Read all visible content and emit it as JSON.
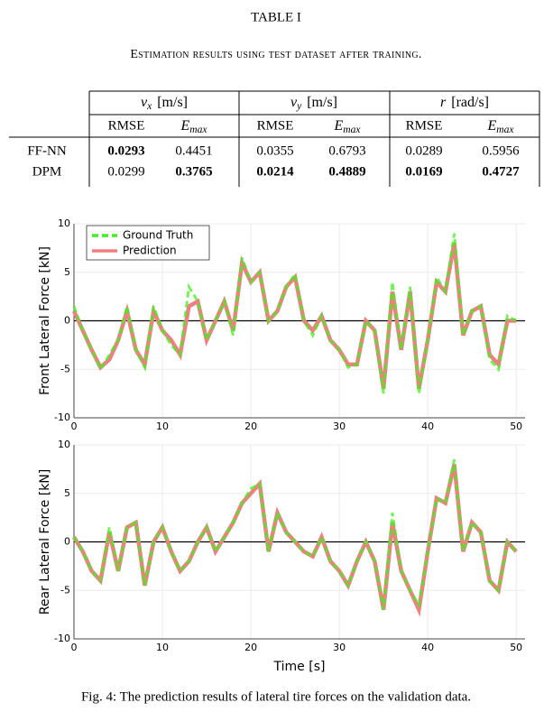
{
  "table": {
    "title": "TABLE I",
    "caption": "Estimation results using test dataset after training.",
    "groups": [
      {
        "symbol": "v",
        "sub": "x",
        "unit": "[m/s]"
      },
      {
        "symbol": "v",
        "sub": "y",
        "unit": "[m/s]"
      },
      {
        "symbol": "r",
        "sub": "",
        "unit": "[rad/s]"
      }
    ],
    "subheaders": [
      {
        "text": "RMSE"
      },
      {
        "symbol": "E",
        "sub": "max"
      },
      {
        "text": "RMSE"
      },
      {
        "symbol": "E",
        "sub": "max"
      },
      {
        "text": "RMSE"
      },
      {
        "symbol": "E",
        "sub": "max"
      }
    ],
    "rows": [
      {
        "label": "FF-NN",
        "cells": [
          0.0293,
          0.4451,
          0.0355,
          0.6793,
          0.0289,
          0.5956
        ],
        "bold": [
          true,
          false,
          false,
          false,
          false,
          false
        ]
      },
      {
        "label": "DPM",
        "cells": [
          0.0299,
          0.3765,
          0.0214,
          0.4889,
          0.0169,
          0.4727
        ],
        "bold": [
          false,
          true,
          true,
          true,
          true,
          true
        ]
      }
    ]
  },
  "chart_data": [
    {
      "type": "line",
      "ylabel": "Front Lateral Force [kN]",
      "x": [
        0,
        1,
        2,
        3,
        4,
        5,
        6,
        7,
        8,
        9,
        10,
        11,
        12,
        13,
        14,
        15,
        16,
        17,
        18,
        19,
        20,
        21,
        22,
        23,
        24,
        25,
        26,
        27,
        28,
        29,
        30,
        31,
        32,
        33,
        34,
        35,
        36,
        37,
        38,
        39,
        40,
        41,
        42,
        43,
        44,
        45,
        46,
        47,
        48,
        49,
        50
      ],
      "series": [
        {
          "name": "Ground Truth",
          "color": "#44ee22",
          "style": "dashed",
          "values": [
            1.5,
            -1,
            -3,
            -5,
            -3.5,
            -2,
            1.5,
            -3,
            -4.8,
            1.5,
            -1,
            -2.5,
            -3.5,
            3.5,
            2,
            -2,
            0,
            2,
            -1.5,
            6.5,
            4,
            5,
            0,
            1,
            3.5,
            4.8,
            0,
            -1.5,
            0.5,
            -2,
            -3,
            -4.8,
            -4.5,
            0,
            -1,
            -7.5,
            4,
            -3,
            3.5,
            -7.5,
            -2,
            4.5,
            3,
            9,
            -1.5,
            1,
            1.5,
            -4,
            -5,
            0.5,
            0
          ]
        },
        {
          "name": "Prediction",
          "color": "#f08080",
          "style": "solid",
          "values": [
            1,
            -1,
            -3,
            -4.8,
            -4,
            -2,
            1,
            -3,
            -4.5,
            1,
            -1,
            -2,
            -3.5,
            1.5,
            2,
            -2,
            0,
            2,
            -1,
            6,
            4,
            5,
            0,
            1,
            3.5,
            4.5,
            0,
            -1,
            0.5,
            -2,
            -3,
            -4.5,
            -4.5,
            0,
            -1,
            -7,
            3,
            -3,
            3,
            -7,
            -2,
            4,
            3,
            8,
            -1.5,
            1,
            1.5,
            -3.5,
            -4.5,
            0,
            0
          ]
        }
      ],
      "xlim": [
        0,
        51
      ],
      "ylim": [
        -10,
        10
      ],
      "xticks": [
        0,
        10,
        20,
        30,
        40,
        50
      ],
      "yticks": [
        -10,
        -5,
        0,
        5,
        10
      ],
      "grid": true,
      "zero_line": true,
      "legend": "upper-left"
    },
    {
      "type": "line",
      "ylabel": "Rear Lateral Force [kN]",
      "xlabel": "Time [s]",
      "x": [
        0,
        1,
        2,
        3,
        4,
        5,
        6,
        7,
        8,
        9,
        10,
        11,
        12,
        13,
        14,
        15,
        16,
        17,
        18,
        19,
        20,
        21,
        22,
        23,
        24,
        25,
        26,
        27,
        28,
        29,
        30,
        31,
        32,
        33,
        34,
        35,
        36,
        37,
        38,
        39,
        40,
        41,
        42,
        43,
        44,
        45,
        46,
        47,
        48,
        49,
        50
      ],
      "series": [
        {
          "name": "Ground Truth",
          "color": "#44ee22",
          "style": "dashed",
          "values": [
            0.5,
            -1,
            -3,
            -4,
            1.5,
            -3,
            1.5,
            2,
            -4.5,
            0,
            1.5,
            -1,
            -3,
            -2,
            0,
            1.5,
            -1,
            0.5,
            2,
            4,
            5.5,
            6,
            -1,
            3,
            1,
            0,
            -1,
            -1.5,
            0.5,
            -2,
            -3,
            -4.5,
            -2,
            0,
            -2,
            -7,
            3,
            -3,
            -5,
            -6.5,
            -1,
            4.5,
            4,
            8.5,
            -1,
            2,
            1,
            -4,
            -5,
            0,
            -1
          ]
        },
        {
          "name": "Prediction",
          "color": "#f08080",
          "style": "solid",
          "values": [
            0.5,
            -1,
            -3,
            -4,
            1,
            -3,
            1.5,
            2,
            -4.5,
            0,
            1.5,
            -1,
            -3,
            -2,
            0,
            1.5,
            -1,
            0.5,
            2,
            4,
            5,
            6,
            -1,
            3,
            1,
            0,
            -1,
            -1.5,
            0.5,
            -2,
            -3,
            -4.5,
            -2,
            0,
            -2,
            -7,
            2,
            -3,
            -5,
            -7,
            -1,
            4.5,
            4,
            8,
            -1,
            2,
            1,
            -4,
            -5,
            0,
            -1
          ]
        }
      ],
      "xlim": [
        0,
        51
      ],
      "ylim": [
        -10,
        10
      ],
      "xticks": [
        0,
        10,
        20,
        30,
        40,
        50
      ],
      "yticks": [
        -10,
        -5,
        0,
        5,
        10
      ],
      "grid": true,
      "zero_line": true
    }
  ],
  "figure_caption": "Fig. 4: The prediction results of lateral tire forces on the validation data."
}
